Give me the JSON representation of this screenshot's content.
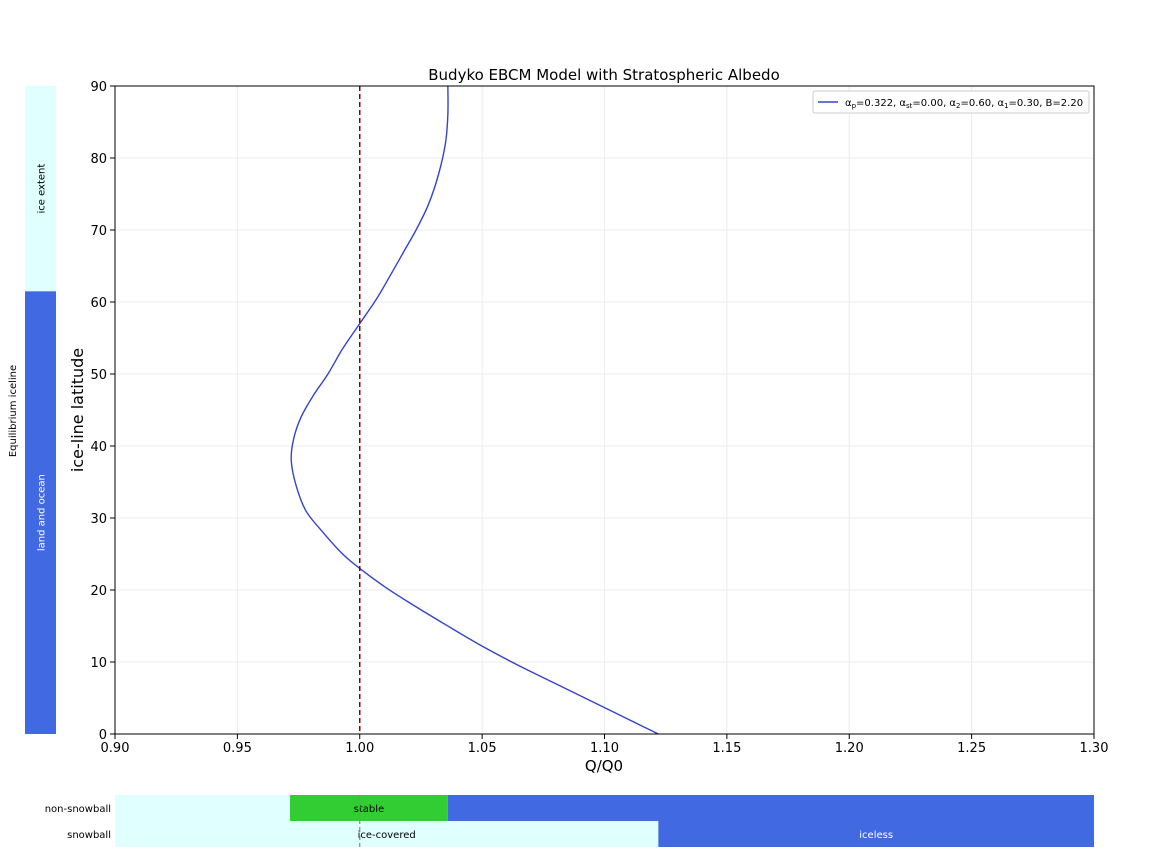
{
  "chart_data": {
    "type": "line",
    "title": "Budyko EBCM Model with Stratospheric Albedo",
    "xlabel": "Q/Q0",
    "ylabel": "ice-line latitude",
    "xlim": [
      0.9,
      1.3
    ],
    "ylim": [
      0,
      90
    ],
    "xticks": [
      0.9,
      0.95,
      1.0,
      1.05,
      1.1,
      1.15,
      1.2,
      1.25,
      1.3
    ],
    "xtick_labels": [
      "0.90",
      "0.95",
      "1.00",
      "1.05",
      "1.10",
      "1.15",
      "1.20",
      "1.25",
      "1.30"
    ],
    "yticks": [
      0,
      10,
      20,
      30,
      40,
      50,
      60,
      70,
      80,
      90
    ],
    "ytick_labels": [
      "0",
      "10",
      "20",
      "30",
      "40",
      "50",
      "60",
      "70",
      "80",
      "90"
    ],
    "grid": true,
    "legend_position": "top-right",
    "series": [
      {
        "name": "αp=0.322, αst=0.00, α2=0.60, α1=0.30, B=2.20",
        "color": "#3344cc",
        "points": [
          [
            1.122,
            0
          ],
          [
            1.11,
            2
          ],
          [
            1.095,
            4.5
          ],
          [
            1.08,
            7
          ],
          [
            1.065,
            9.5
          ],
          [
            1.05,
            12.2
          ],
          [
            1.035,
            15.2
          ],
          [
            1.02,
            18.3
          ],
          [
            1.01,
            20.5
          ],
          [
            1.0,
            23
          ],
          [
            0.993,
            25
          ],
          [
            0.985,
            28
          ],
          [
            0.978,
            31
          ],
          [
            0.974,
            34.5
          ],
          [
            0.972,
            38
          ],
          [
            0.973,
            41
          ],
          [
            0.976,
            44
          ],
          [
            0.981,
            47
          ],
          [
            0.987,
            50
          ],
          [
            0.993,
            53.5
          ],
          [
            1.0,
            57
          ],
          [
            1.007,
            60.5
          ],
          [
            1.013,
            64
          ],
          [
            1.018,
            67
          ],
          [
            1.023,
            70
          ],
          [
            1.028,
            73.5
          ],
          [
            1.032,
            77.5
          ],
          [
            1.035,
            82
          ],
          [
            1.036,
            86
          ],
          [
            1.036,
            90
          ]
        ]
      }
    ],
    "vline": {
      "x": 1.0,
      "color": "#8b0000",
      "style": "dashed"
    },
    "left_bar": {
      "label": "Equilibrium iceline",
      "segments": [
        {
          "label": "land and ocean",
          "from": 0,
          "to": 61.5,
          "color": "#4169e1"
        },
        {
          "label": "ice extent",
          "from": 61.5,
          "to": 90,
          "color": "#e0ffff"
        }
      ]
    },
    "bottom_bars": [
      {
        "label": "non-snowball",
        "segments": [
          {
            "label": "",
            "from": 0.9,
            "to": 0.9715,
            "color": "#e0ffff"
          },
          {
            "label": "stable",
            "from": 0.9715,
            "to": 1.036,
            "color": "#32cd32"
          },
          {
            "label": "",
            "from": 1.036,
            "to": 1.3,
            "color": "#4169e1"
          }
        ]
      },
      {
        "label": "snowball",
        "segments": [
          {
            "label": "ice-covered",
            "from": 0.9,
            "to": 1.122,
            "color": "#e0ffff"
          },
          {
            "label": "iceless",
            "from": 1.122,
            "to": 1.3,
            "color": "#4169e1"
          }
        ]
      }
    ]
  }
}
